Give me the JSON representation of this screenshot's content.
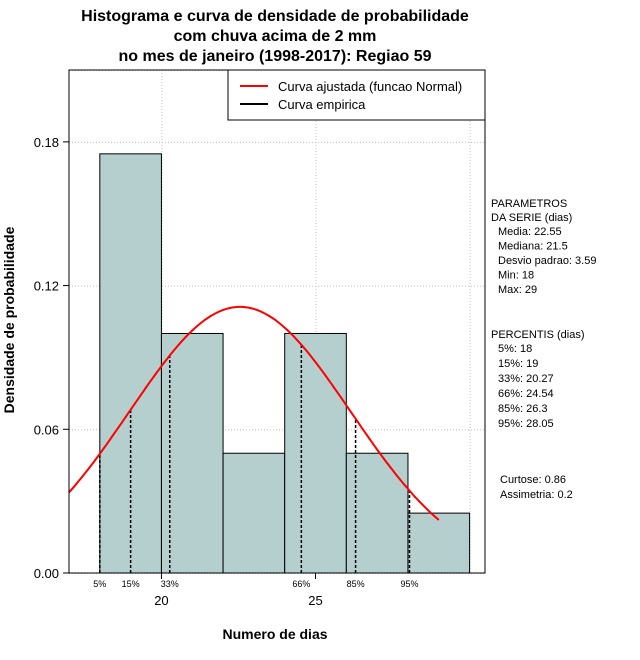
{
  "chart_data": {
    "type": "bar",
    "title_lines": [
      "Histograma e curva de densidade de probabilidade",
      "com chuva acima de 2 mm",
      "no mes de janeiro (1998-2017): Regiao 59"
    ],
    "xlabel": "Numero de dias",
    "ylabel": "Densidade de probabilidade",
    "xlim": [
      17,
      30.5
    ],
    "ylim": [
      0,
      0.21
    ],
    "xticks": [
      20,
      25
    ],
    "yticks": [
      0.0,
      0.06,
      0.12,
      0.18
    ],
    "ytick_labels": [
      "0.00",
      "0.06",
      "0.12",
      "0.18"
    ],
    "grid": true,
    "bars": [
      {
        "x0": 18,
        "x1": 20,
        "value": 0.175
      },
      {
        "x0": 20,
        "x1": 22,
        "value": 0.1
      },
      {
        "x0": 22,
        "x1": 24,
        "value": 0.05
      },
      {
        "x0": 24,
        "x1": 26,
        "value": 0.1
      },
      {
        "x0": 26,
        "x1": 28,
        "value": 0.05
      },
      {
        "x0": 28,
        "x1": 30,
        "value": 0.025
      }
    ],
    "fitted_curve": {
      "name": "Curva ajustada (funcao Normal)",
      "mean": 22.55,
      "sd": 3.59,
      "x_from": 17,
      "x_to": 29,
      "color": "#ff0000"
    },
    "empirical_curve": {
      "name": "Curva empirica",
      "color": "#000000"
    },
    "legend_position": "top-right",
    "percentile_lines": [
      {
        "label": "5%",
        "x": 18
      },
      {
        "label": "15%",
        "x": 19
      },
      {
        "label": "33%",
        "x": 20.27
      },
      {
        "label": "66%",
        "x": 24.54
      },
      {
        "label": "85%",
        "x": 26.3
      },
      {
        "label": "95%",
        "x": 28.05
      }
    ],
    "bar_color": "#b5cece"
  },
  "side_panel": {
    "params_header_1": "PARAMETROS",
    "params_header_2": "DA SERIE (dias)",
    "params": [
      "Media: 22.55",
      "Mediana: 21.5",
      "Desvio padrao: 3.59",
      "Min: 18",
      "Max: 29"
    ],
    "pct_header": "PERCENTIS (dias)",
    "percentiles": [
      "5%: 18",
      "15%: 19",
      "33%: 20.27",
      "66%: 24.54",
      "85%: 26.3",
      "95%: 28.05"
    ],
    "stats": [
      "Curtose: 0.86",
      "Assimetria: 0.2"
    ]
  }
}
